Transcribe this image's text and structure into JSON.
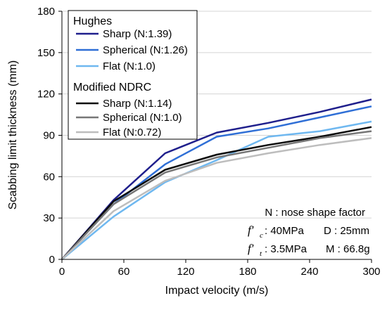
{
  "chart_data": {
    "type": "line",
    "xlabel": "Impact velocity (m/s)",
    "ylabel": "Scabbing limit thickness (mm)",
    "xlim": [
      0,
      300
    ],
    "ylim": [
      0,
      180
    ],
    "xticks": [
      0,
      60,
      120,
      180,
      240,
      300
    ],
    "yticks": [
      0,
      30,
      60,
      90,
      120,
      150,
      180
    ],
    "grid": "horizontal",
    "legend_position": "top-left",
    "legend_groups": [
      {
        "title": "Hughes",
        "series_indices": [
          0,
          1,
          2
        ]
      },
      {
        "title": "Modified NDRC",
        "series_indices": [
          3,
          4,
          5
        ]
      }
    ],
    "series": [
      {
        "name": "Sharp (N:1.39)",
        "color": "#1f1f8c",
        "x": [
          0,
          50,
          100,
          150,
          200,
          250,
          300
        ],
        "y": [
          0,
          43,
          77,
          92,
          99,
          107,
          116
        ]
      },
      {
        "name": "Spherical (N:1.26)",
        "color": "#2f6fd6",
        "x": [
          0,
          50,
          100,
          150,
          200,
          250,
          300
        ],
        "y": [
          0,
          40,
          69,
          89,
          95,
          103,
          111
        ]
      },
      {
        "name": "Flat (N:1.0)",
        "color": "#6fb8f0",
        "x": [
          0,
          50,
          100,
          150,
          200,
          250,
          300
        ],
        "y": [
          0,
          31,
          56,
          72,
          89,
          93,
          100
        ]
      },
      {
        "name": "Sharp (N:1.14)",
        "color": "#0a0a0a",
        "x": [
          0,
          50,
          100,
          150,
          200,
          250,
          300
        ],
        "y": [
          0,
          42,
          65,
          76,
          83,
          89,
          96
        ]
      },
      {
        "name": "Spherical (N:1.0)",
        "color": "#777777",
        "x": [
          0,
          50,
          100,
          150,
          200,
          250,
          300
        ],
        "y": [
          0,
          40,
          63,
          74,
          81,
          88,
          93
        ]
      },
      {
        "name": "Flat (N:0.72)",
        "color": "#bdbdbd",
        "x": [
          0,
          50,
          100,
          150,
          200,
          250,
          300
        ],
        "y": [
          0,
          35,
          57,
          70,
          77,
          83,
          88
        ]
      }
    ],
    "annotations": {
      "line1": "N : nose shape factor",
      "fc_symbol": "f′",
      "fc_sub": "c",
      "fc_value": ": 40MPa",
      "d_value": "D : 25mm",
      "ft_symbol": "f′",
      "ft_sub": "t",
      "ft_value": ": 3.5MPa",
      "m_value": "M : 66.8g"
    }
  }
}
